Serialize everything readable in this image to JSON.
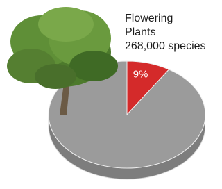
{
  "chart_data": {
    "type": "pie",
    "title": "Flowering Plants",
    "annotation": "268,000 species",
    "categories": [
      "Flowering Plants",
      null
    ],
    "values": [
      9,
      91
    ],
    "value_labels": [
      "9%",
      null
    ],
    "colors": [
      "#d42a2a",
      "#9b9b9b"
    ]
  }
}
